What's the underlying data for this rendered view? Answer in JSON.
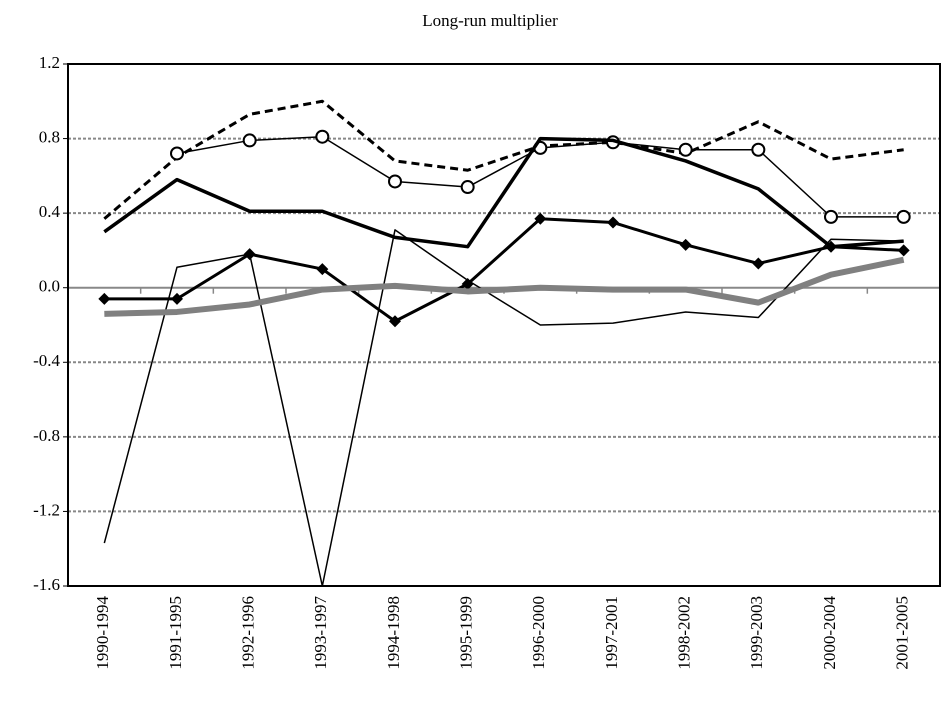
{
  "chart_data": {
    "type": "line",
    "title": "Long-run multiplier",
    "categories": [
      "1990-1994",
      "1991-1995",
      "1992-1996",
      "1993-1997",
      "1994-1998",
      "1995-1999",
      "1996-2000",
      "1997-2001",
      "1998-2002",
      "1999-2003",
      "2000-2004",
      "2001-2005"
    ],
    "ylim": [
      -1.6,
      1.2
    ],
    "yticks": [
      -1.6,
      -1.2,
      -0.8,
      -0.4,
      {
        "value": 0,
        "label": "0.0"
      },
      0.4,
      0.8,
      1.2
    ],
    "grid": true,
    "series": [
      {
        "color": "#000000",
        "width": 3,
        "dash": "8,5",
        "marker": "none",
        "values": [
          0.37,
          0.7,
          0.93,
          1.0,
          0.68,
          0.63,
          0.76,
          0.78,
          0.72,
          0.89,
          0.69,
          0.74
        ]
      },
      {
        "color": "#000000",
        "width": 1.5,
        "dash": "none",
        "marker": "circle",
        "values": [
          null,
          0.72,
          0.79,
          0.81,
          0.57,
          0.54,
          0.75,
          0.78,
          0.74,
          0.74,
          0.38,
          0.38
        ]
      },
      {
        "color": "#000000",
        "width": 3.5,
        "dash": "none",
        "marker": "none",
        "values": [
          0.3,
          0.58,
          0.41,
          0.41,
          0.27,
          0.22,
          0.8,
          0.79,
          0.68,
          0.53,
          0.22,
          0.25
        ]
      },
      {
        "color": "#000000",
        "width": 3,
        "dash": "none",
        "marker": "diamond",
        "values": [
          -0.06,
          -0.06,
          0.18,
          0.1,
          -0.18,
          0.02,
          0.37,
          0.35,
          0.23,
          0.13,
          0.22,
          0.2
        ]
      },
      {
        "color": "#000000",
        "width": 1.5,
        "dash": "none",
        "marker": "none",
        "values": [
          -1.37,
          0.11,
          0.18,
          -1.6,
          0.31,
          0.04,
          -0.2,
          -0.19,
          -0.13,
          -0.16,
          0.26,
          0.25
        ]
      },
      {
        "color": "#808080",
        "width": 6,
        "dash": "none",
        "marker": "none",
        "values": [
          -0.14,
          -0.13,
          -0.09,
          -0.01,
          0.01,
          -0.02,
          0.0,
          -0.01,
          -0.01,
          -0.08,
          0.07,
          0.15
        ]
      }
    ]
  }
}
